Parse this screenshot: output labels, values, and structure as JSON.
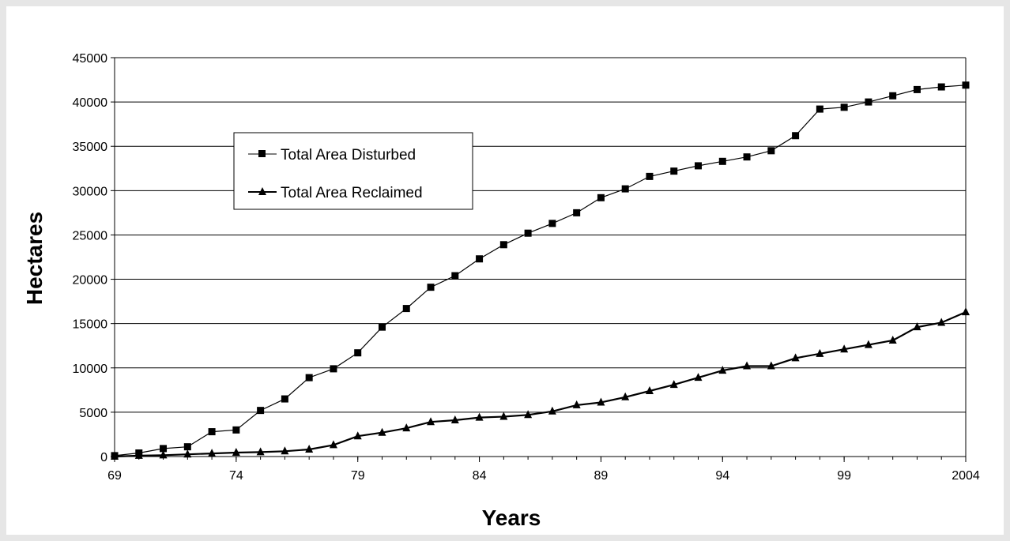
{
  "chart_data": {
    "type": "line",
    "xlabel": "Years",
    "ylabel": "Hectares",
    "xlim": [
      1969,
      2004
    ],
    "ylim": [
      0,
      45000
    ],
    "x_ticks": [
      1969,
      1974,
      1979,
      1984,
      1989,
      1994,
      1999,
      2004
    ],
    "x_tick_labels": [
      "69",
      "74",
      "79",
      "84",
      "89",
      "94",
      "99",
      "2004"
    ],
    "y_ticks": [
      0,
      5000,
      10000,
      15000,
      20000,
      25000,
      30000,
      35000,
      40000,
      45000
    ],
    "y_tick_labels": [
      "0",
      "5000",
      "10000",
      "15000",
      "20000",
      "25000",
      "30000",
      "35000",
      "40000",
      "45000"
    ],
    "grid": "horizontal",
    "legend_position": "upper-left, inside plot",
    "x": [
      1969,
      1970,
      1971,
      1972,
      1973,
      1974,
      1975,
      1976,
      1977,
      1978,
      1979,
      1980,
      1981,
      1982,
      1983,
      1984,
      1985,
      1986,
      1987,
      1988,
      1989,
      1990,
      1991,
      1992,
      1993,
      1994,
      1995,
      1996,
      1997,
      1998,
      1999,
      2000,
      2001,
      2002,
      2003,
      2004
    ],
    "series": [
      {
        "name": "Total Area Disturbed",
        "marker": "square",
        "color": "#000000",
        "values": [
          100,
          400,
          900,
          1100,
          2800,
          3000,
          5200,
          6500,
          8900,
          9900,
          11700,
          14600,
          16700,
          19100,
          20400,
          22300,
          23900,
          25200,
          26300,
          27500,
          29200,
          30200,
          31600,
          32200,
          32800,
          33300,
          33800,
          34500,
          36200,
          39200,
          39400,
          40000,
          40700,
          41400,
          41700,
          41900
        ]
      },
      {
        "name": "Total Area Reclaimed",
        "marker": "triangle",
        "color": "#000000",
        "values": [
          0,
          100,
          150,
          250,
          350,
          450,
          500,
          600,
          800,
          1300,
          2300,
          2700,
          3200,
          3900,
          4100,
          4400,
          4500,
          4700,
          5100,
          5800,
          6100,
          6700,
          7400,
          8100,
          8900,
          9700,
          10200,
          10200,
          11100,
          11600,
          12100,
          12600,
          13100,
          14600,
          15100,
          16300
        ]
      }
    ]
  }
}
